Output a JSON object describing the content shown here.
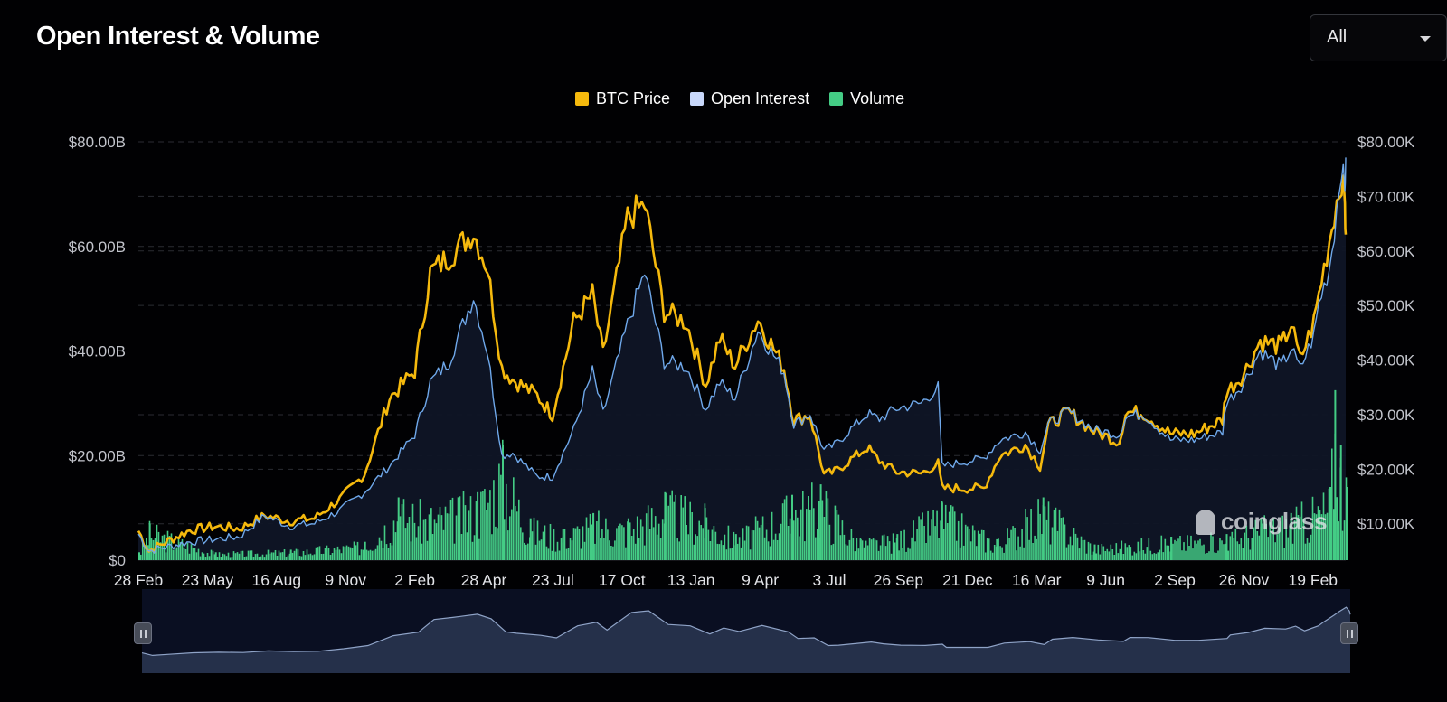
{
  "header": {
    "title": "Open Interest & Volume",
    "range_select": {
      "selected": "All"
    }
  },
  "colors": {
    "background": "#010103",
    "price": "#f5b90d",
    "open_interest": "#6fa8ea",
    "volume": "#44cc85",
    "grid": "#2a2c33",
    "navigator_fill": "#25304a",
    "navigator_line": "#8fa3c7"
  },
  "watermark": {
    "text": "coinglass",
    "icon": "coinglass-logo-icon"
  },
  "navigator": {
    "left_handle_icon": "pause-grip-icon",
    "right_handle_icon": "pause-grip-icon"
  },
  "chart_data": {
    "type": "line",
    "title": "Open Interest & Volume",
    "legend": {
      "placement": "top-center",
      "entries": [
        {
          "key": "price",
          "label": "BTC Price"
        },
        {
          "key": "open_interest",
          "label": "Open Interest"
        },
        {
          "key": "volume",
          "label": "Volume"
        }
      ]
    },
    "grid": true,
    "x_axis": {
      "ticks": [
        "28 Feb",
        "23 May",
        "16 Aug",
        "9 Nov",
        "2 Feb",
        "28 Apr",
        "23 Jul",
        "17 Oct",
        "13 Jan",
        "9 Apr",
        "3 Jul",
        "26 Sep",
        "21 Dec",
        "16 Mar",
        "9 Jun",
        "2 Sep",
        "26 Nov",
        "19 Feb"
      ],
      "range": [
        "2020-02-28",
        "2024-03-19"
      ]
    },
    "y_left": {
      "ticks": [
        "$0",
        "$20.00B",
        "$40.00B",
        "$60.00B",
        "$80.00B"
      ],
      "tick_values": [
        0,
        20,
        40,
        60,
        80
      ],
      "range": [
        0,
        80
      ],
      "unit": "B"
    },
    "y_right": {
      "ticks": [
        "$10.00K",
        "$20.00K",
        "$30.00K",
        "$40.00K",
        "$50.00K",
        "$60.00K",
        "$70.00K",
        "$80.00K"
      ],
      "tick_values": [
        10,
        20,
        30,
        40,
        50,
        60,
        70,
        80
      ],
      "range": [
        3.33,
        80
      ],
      "unit": "K"
    },
    "series": [
      {
        "name": "BTC Price",
        "key": "price",
        "axis": "right",
        "points": [
          [
            "2020-02-28",
            8.7
          ],
          [
            "2020-03-12",
            5.0
          ],
          [
            "2020-04-01",
            6.6
          ],
          [
            "2020-05-01",
            8.8
          ],
          [
            "2020-06-01",
            9.5
          ],
          [
            "2020-07-01",
            9.1
          ],
          [
            "2020-08-01",
            11.5
          ],
          [
            "2020-09-01",
            10.5
          ],
          [
            "2020-10-01",
            11.0
          ],
          [
            "2020-11-01",
            14.5
          ],
          [
            "2020-12-01",
            19.0
          ],
          [
            "2021-01-01",
            33.0
          ],
          [
            "2021-02-01",
            38.0
          ],
          [
            "2021-02-20",
            56.0
          ],
          [
            "2021-03-15",
            59.0
          ],
          [
            "2021-04-14",
            63.5
          ],
          [
            "2021-05-01",
            57.0
          ],
          [
            "2021-05-19",
            38.5
          ],
          [
            "2021-06-01",
            36.5
          ],
          [
            "2021-07-01",
            33.5
          ],
          [
            "2021-07-20",
            30.0
          ],
          [
            "2021-08-15",
            47.0
          ],
          [
            "2021-09-07",
            52.0
          ],
          [
            "2021-09-20",
            41.0
          ],
          [
            "2021-10-20",
            66.0
          ],
          [
            "2021-11-10",
            68.5
          ],
          [
            "2021-12-04",
            49.0
          ],
          [
            "2021-12-31",
            47.0
          ],
          [
            "2022-01-24",
            35.5
          ],
          [
            "2022-02-10",
            44.0
          ],
          [
            "2022-03-01",
            39.0
          ],
          [
            "2022-03-29",
            47.5
          ],
          [
            "2022-04-30",
            38.5
          ],
          [
            "2022-05-12",
            29.0
          ],
          [
            "2022-06-01",
            30.0
          ],
          [
            "2022-06-18",
            19.0
          ],
          [
            "2022-07-01",
            19.5
          ],
          [
            "2022-08-10",
            24.0
          ],
          [
            "2022-08-25",
            21.5
          ],
          [
            "2022-09-15",
            19.5
          ],
          [
            "2022-10-15",
            19.2
          ],
          [
            "2022-11-05",
            21.0
          ],
          [
            "2022-11-10",
            16.5
          ],
          [
            "2022-12-31",
            16.5
          ],
          [
            "2023-01-20",
            22.5
          ],
          [
            "2023-02-20",
            24.5
          ],
          [
            "2023-03-10",
            20.5
          ],
          [
            "2023-03-20",
            28.0
          ],
          [
            "2023-04-14",
            30.5
          ],
          [
            "2023-05-15",
            27.0
          ],
          [
            "2023-06-15",
            25.0
          ],
          [
            "2023-06-23",
            30.5
          ],
          [
            "2023-07-15",
            30.3
          ],
          [
            "2023-08-17",
            26.5
          ],
          [
            "2023-09-15",
            26.5
          ],
          [
            "2023-10-20",
            29.0
          ],
          [
            "2023-10-24",
            34.0
          ],
          [
            "2023-11-15",
            37.5
          ],
          [
            "2023-12-05",
            43.5
          ],
          [
            "2023-12-31",
            42.5
          ],
          [
            "2024-01-12",
            46.5
          ],
          [
            "2024-01-23",
            40.0
          ],
          [
            "2024-02-09",
            47.0
          ],
          [
            "2024-02-15",
            52.0
          ],
          [
            "2024-02-28",
            62.0
          ],
          [
            "2024-03-05",
            67.0
          ],
          [
            "2024-03-14",
            73.5
          ],
          [
            "2024-03-18",
            68.0
          ],
          [
            "2024-03-19",
            63.0
          ]
        ]
      },
      {
        "name": "Open Interest",
        "key": "open_interest",
        "axis": "left",
        "points": [
          [
            "2020-02-28",
            5.0
          ],
          [
            "2020-03-12",
            1.8
          ],
          [
            "2020-04-01",
            2.5
          ],
          [
            "2020-05-01",
            3.5
          ],
          [
            "2020-06-01",
            4.0
          ],
          [
            "2020-07-01",
            4.5
          ],
          [
            "2020-08-01",
            8.5
          ],
          [
            "2020-09-01",
            6.5
          ],
          [
            "2020-10-01",
            7.0
          ],
          [
            "2020-11-01",
            9.5
          ],
          [
            "2020-12-01",
            13.0
          ],
          [
            "2021-01-01",
            18.0
          ],
          [
            "2021-02-01",
            24.0
          ],
          [
            "2021-02-20",
            34.0
          ],
          [
            "2021-03-15",
            38.0
          ],
          [
            "2021-04-14",
            50.5
          ],
          [
            "2021-05-01",
            40.0
          ],
          [
            "2021-05-19",
            20.0
          ],
          [
            "2021-06-01",
            20.5
          ],
          [
            "2021-07-01",
            16.0
          ],
          [
            "2021-07-20",
            16.0
          ],
          [
            "2021-08-15",
            25.0
          ],
          [
            "2021-09-07",
            36.0
          ],
          [
            "2021-09-20",
            28.0
          ],
          [
            "2021-10-20",
            45.0
          ],
          [
            "2021-11-10",
            55.0
          ],
          [
            "2021-12-04",
            38.0
          ],
          [
            "2021-12-31",
            37.0
          ],
          [
            "2022-01-24",
            29.0
          ],
          [
            "2022-02-10",
            34.0
          ],
          [
            "2022-03-01",
            31.0
          ],
          [
            "2022-03-29",
            44.0
          ],
          [
            "2022-04-30",
            36.0
          ],
          [
            "2022-05-12",
            26.0
          ],
          [
            "2022-06-01",
            28.0
          ],
          [
            "2022-06-18",
            21.0
          ],
          [
            "2022-07-01",
            22.0
          ],
          [
            "2022-08-10",
            28.0
          ],
          [
            "2022-08-25",
            27.0
          ],
          [
            "2022-09-15",
            29.0
          ],
          [
            "2022-10-15",
            30.0
          ],
          [
            "2022-11-05",
            33.0
          ],
          [
            "2022-11-10",
            18.0
          ],
          [
            "2022-12-31",
            19.5
          ],
          [
            "2023-01-20",
            23.0
          ],
          [
            "2023-02-20",
            24.5
          ],
          [
            "2023-03-10",
            21.0
          ],
          [
            "2023-03-20",
            26.0
          ],
          [
            "2023-04-14",
            28.5
          ],
          [
            "2023-05-15",
            25.0
          ],
          [
            "2023-06-15",
            24.0
          ],
          [
            "2023-06-23",
            27.5
          ],
          [
            "2023-07-15",
            28.0
          ],
          [
            "2023-08-17",
            23.0
          ],
          [
            "2023-09-15",
            23.0
          ],
          [
            "2023-10-20",
            24.5
          ],
          [
            "2023-10-24",
            30.0
          ],
          [
            "2023-11-15",
            34.0
          ],
          [
            "2023-12-05",
            40.0
          ],
          [
            "2023-12-31",
            37.0
          ],
          [
            "2024-01-12",
            40.5
          ],
          [
            "2024-01-23",
            36.5
          ],
          [
            "2024-02-09",
            43.0
          ],
          [
            "2024-02-15",
            49.0
          ],
          [
            "2024-02-28",
            56.0
          ],
          [
            "2024-03-05",
            63.0
          ],
          [
            "2024-03-14",
            76.0
          ],
          [
            "2024-03-18",
            70.0
          ],
          [
            "2024-03-19",
            77.0
          ]
        ]
      },
      {
        "name": "Volume",
        "key": "volume",
        "axis": "left",
        "type": "bar",
        "points": [
          [
            "2020-02-28",
            1.5
          ],
          [
            "2020-03-12",
            7.0
          ],
          [
            "2020-06-01",
            1.5
          ],
          [
            "2020-09-01",
            2.0
          ],
          [
            "2020-12-01",
            3.5
          ],
          [
            "2021-01-11",
            12.0
          ],
          [
            "2021-02-20",
            10.0
          ],
          [
            "2021-04-18",
            13.0
          ],
          [
            "2021-05-19",
            22.0
          ],
          [
            "2021-06-22",
            8.0
          ],
          [
            "2021-08-01",
            6.0
          ],
          [
            "2021-09-07",
            9.0
          ],
          [
            "2021-10-20",
            8.0
          ],
          [
            "2021-12-04",
            13.0
          ],
          [
            "2022-01-22",
            10.0
          ],
          [
            "2022-03-01",
            5.0
          ],
          [
            "2022-05-09",
            12.5
          ],
          [
            "2022-06-13",
            14.5
          ],
          [
            "2022-08-01",
            4.0
          ],
          [
            "2022-09-15",
            5.0
          ],
          [
            "2022-11-09",
            11.0
          ],
          [
            "2023-01-15",
            4.0
          ],
          [
            "2023-03-13",
            12.0
          ],
          [
            "2023-05-15",
            3.0
          ],
          [
            "2023-08-17",
            4.5
          ],
          [
            "2023-10-24",
            5.0
          ],
          [
            "2023-12-05",
            8.0
          ],
          [
            "2024-01-11",
            9.0
          ],
          [
            "2024-02-28",
            14.0
          ],
          [
            "2024-03-05",
            32.5
          ],
          [
            "2024-03-12",
            22.0
          ],
          [
            "2024-03-19",
            14.0
          ]
        ]
      }
    ]
  }
}
